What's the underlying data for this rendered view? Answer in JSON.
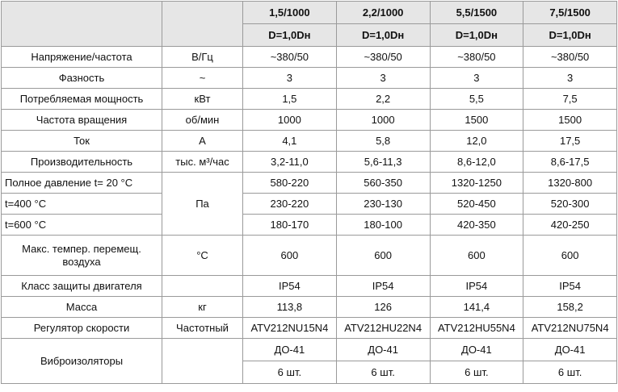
{
  "header": {
    "columns": [
      {
        "model": "1,5/1000",
        "diameter": "D=1,0Dн"
      },
      {
        "model": "2,2/1000",
        "diameter": "D=1,0Dн"
      },
      {
        "model": "5,5/1500",
        "diameter": "D=1,0Dн"
      },
      {
        "model": "7,5/1500",
        "diameter": "D=1,0Dн"
      }
    ]
  },
  "rows": [
    {
      "label": "Напряжение/частота",
      "unit": "В/Гц",
      "values": [
        "~380/50",
        "~380/50",
        "~380/50",
        "~380/50"
      ]
    },
    {
      "label": "Фазность",
      "unit": "~",
      "values": [
        "3",
        "3",
        "3",
        "3"
      ]
    },
    {
      "label": "Потребляемая мощность",
      "unit": "кВт",
      "values": [
        "1,5",
        "2,2",
        "5,5",
        "7,5"
      ]
    },
    {
      "label": "Частота вращения",
      "unit": "об/мин",
      "values": [
        "1000",
        "1000",
        "1500",
        "1500"
      ]
    },
    {
      "label": "Ток",
      "unit": "А",
      "values": [
        "4,1",
        "5,8",
        "12,0",
        "17,5"
      ]
    },
    {
      "label": "Производительность",
      "unit": "тыс. м³/час",
      "values": [
        "3,2-11,0",
        "5,6-11,3",
        "8,6-12,0",
        "8,6-17,5"
      ]
    },
    {
      "label": "Полное давление  t= 20 °С",
      "unit": "Па",
      "unit_rows": 3,
      "align": "left",
      "values": [
        "580-220",
        "560-350",
        "1320-1250",
        "1320-800"
      ]
    },
    {
      "label": "t=400 °С",
      "align": "left",
      "values": [
        "230-220",
        "230-130",
        "520-450",
        "520-300"
      ]
    },
    {
      "label": "t=600 °С",
      "align": "left",
      "values": [
        "180-170",
        "180-100",
        "420-350",
        "420-250"
      ]
    },
    {
      "label": "Макс. темпер. перемещ. воздуха",
      "unit": "°С",
      "tall": true,
      "values": [
        "600",
        "600",
        "600",
        "600"
      ]
    },
    {
      "label": "Класс защиты двигателя",
      "unit_empty": true,
      "values": [
        "IP54",
        "IP54",
        "IP54",
        "IP54"
      ]
    },
    {
      "label": "Масса",
      "unit": "кг",
      "values": [
        "113,8",
        "126",
        "141,4",
        "158,2"
      ]
    },
    {
      "label": "Регулятор скорости",
      "unit": "Частотный",
      "values": [
        "ATV212NU15N4",
        "ATV212HU22N4",
        "ATV212HU55N4",
        "ATV212NU75N4"
      ]
    },
    {
      "label": "Виброизоляторы",
      "values": [
        "ДО-41",
        "ДО-41",
        "ДО-41",
        "ДО-41"
      ],
      "sub_values": [
        "6 шт.",
        "6 шт.",
        "6 шт.",
        "6 шт."
      ]
    }
  ]
}
